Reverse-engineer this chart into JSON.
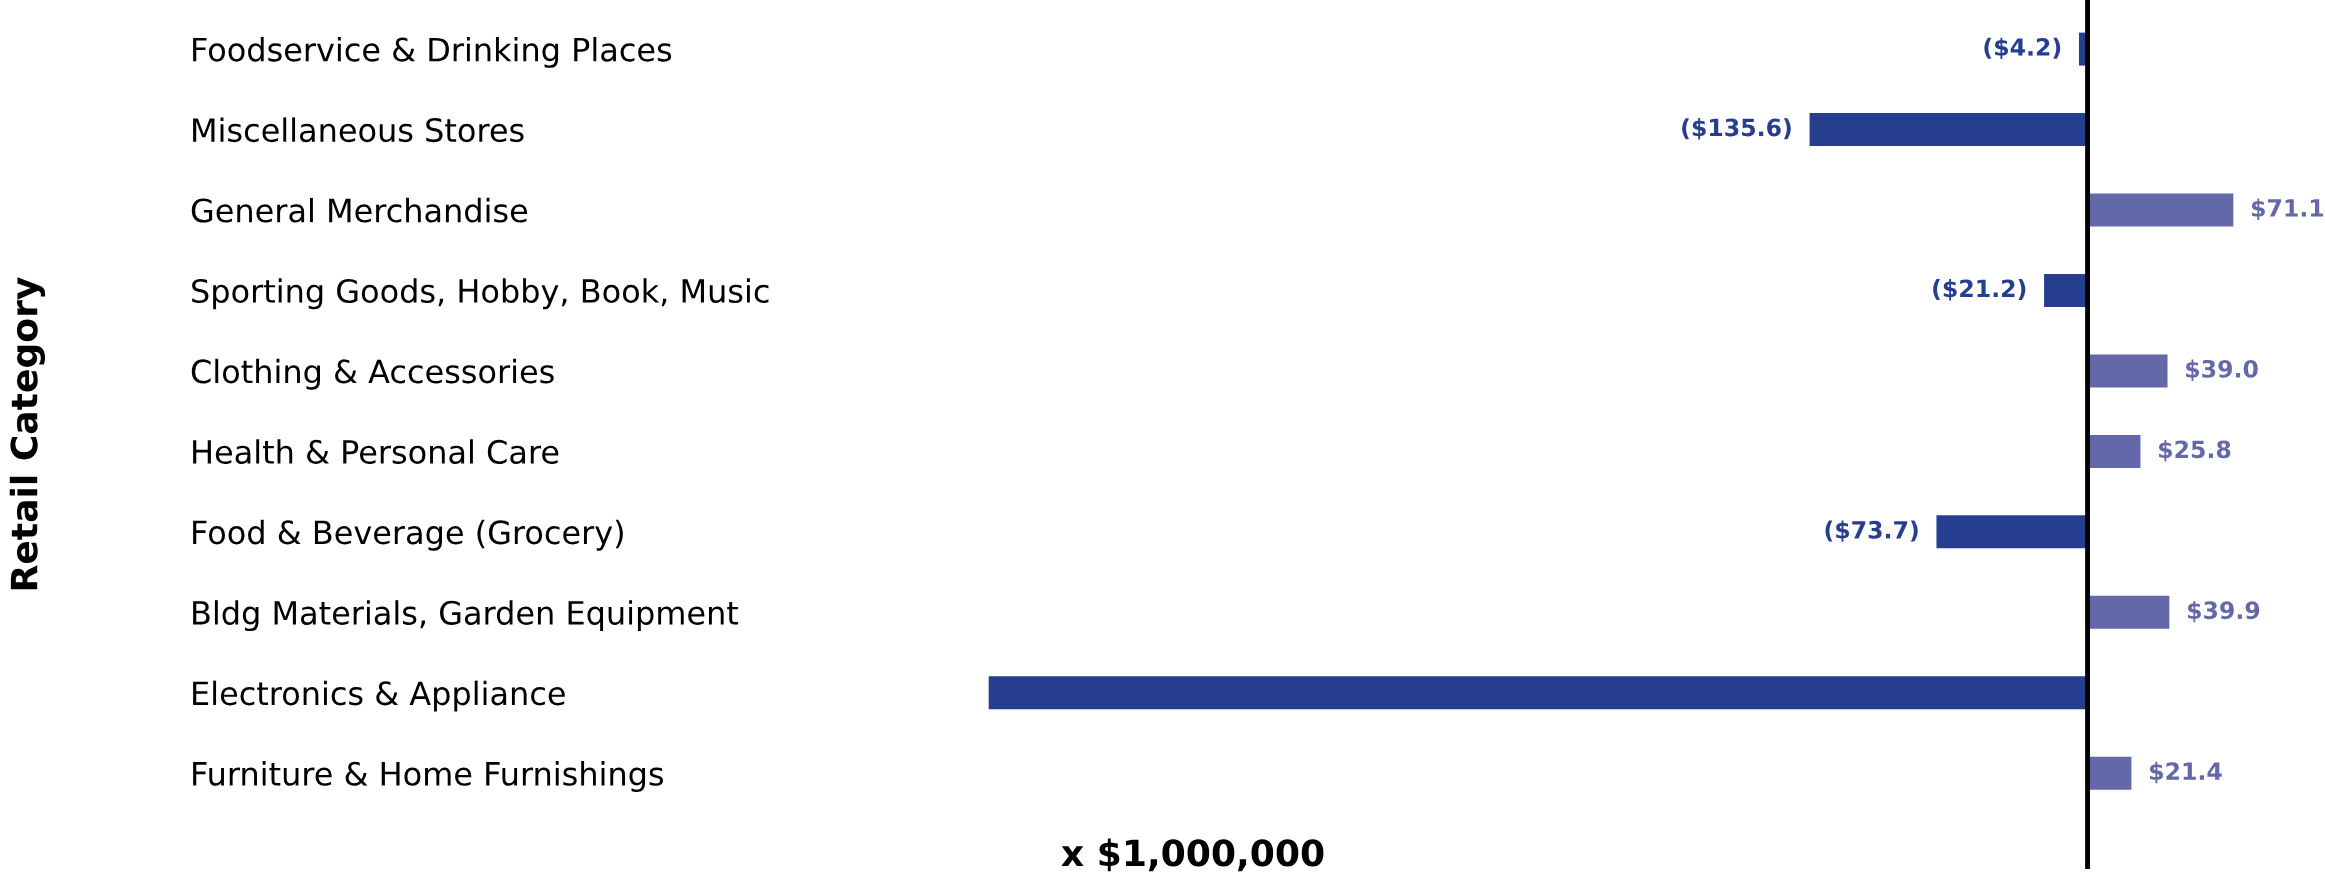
{
  "chart_data": {
    "type": "bar",
    "orientation": "horizontal",
    "xlabel": "x $1,000,000",
    "ylabel": "Retail Category",
    "categories": [
      "Foodservice & Drinking Places",
      "Miscellaneous Stores",
      "General Merchandise",
      "Sporting Goods, Hobby, Book, Music",
      "Clothing & Accessories",
      "Health & Personal Care",
      "Food & Beverage (Grocery)",
      "Bldg Materials, Garden Equipment",
      "Electronics & Appliance",
      "Furniture & Home Furnishings"
    ],
    "values": [
      -4.2,
      -135.6,
      71.1,
      -21.2,
      39.0,
      25.8,
      -73.7,
      39.9,
      -536,
      21.4
    ],
    "colors": [
      "#253f8e",
      "#253f8e",
      "#6369a8",
      "#253f8e",
      "#6369a8",
      "#6369a8",
      "#253f8e",
      "#6369a8",
      "#253f8e",
      "#6369a8"
    ],
    "value_labels": [
      "($4.2)",
      "($135.6)",
      "$71.1",
      "($21.2)",
      "$39.0",
      "$25.8",
      "($73.7)",
      "$39.9",
      null,
      "$21.4"
    ],
    "tick_labels": "y",
    "grid": false,
    "legend": false,
    "ref_lines": [
      {
        "axis": "x",
        "value": 0,
        "color": "#000000"
      }
    ]
  }
}
